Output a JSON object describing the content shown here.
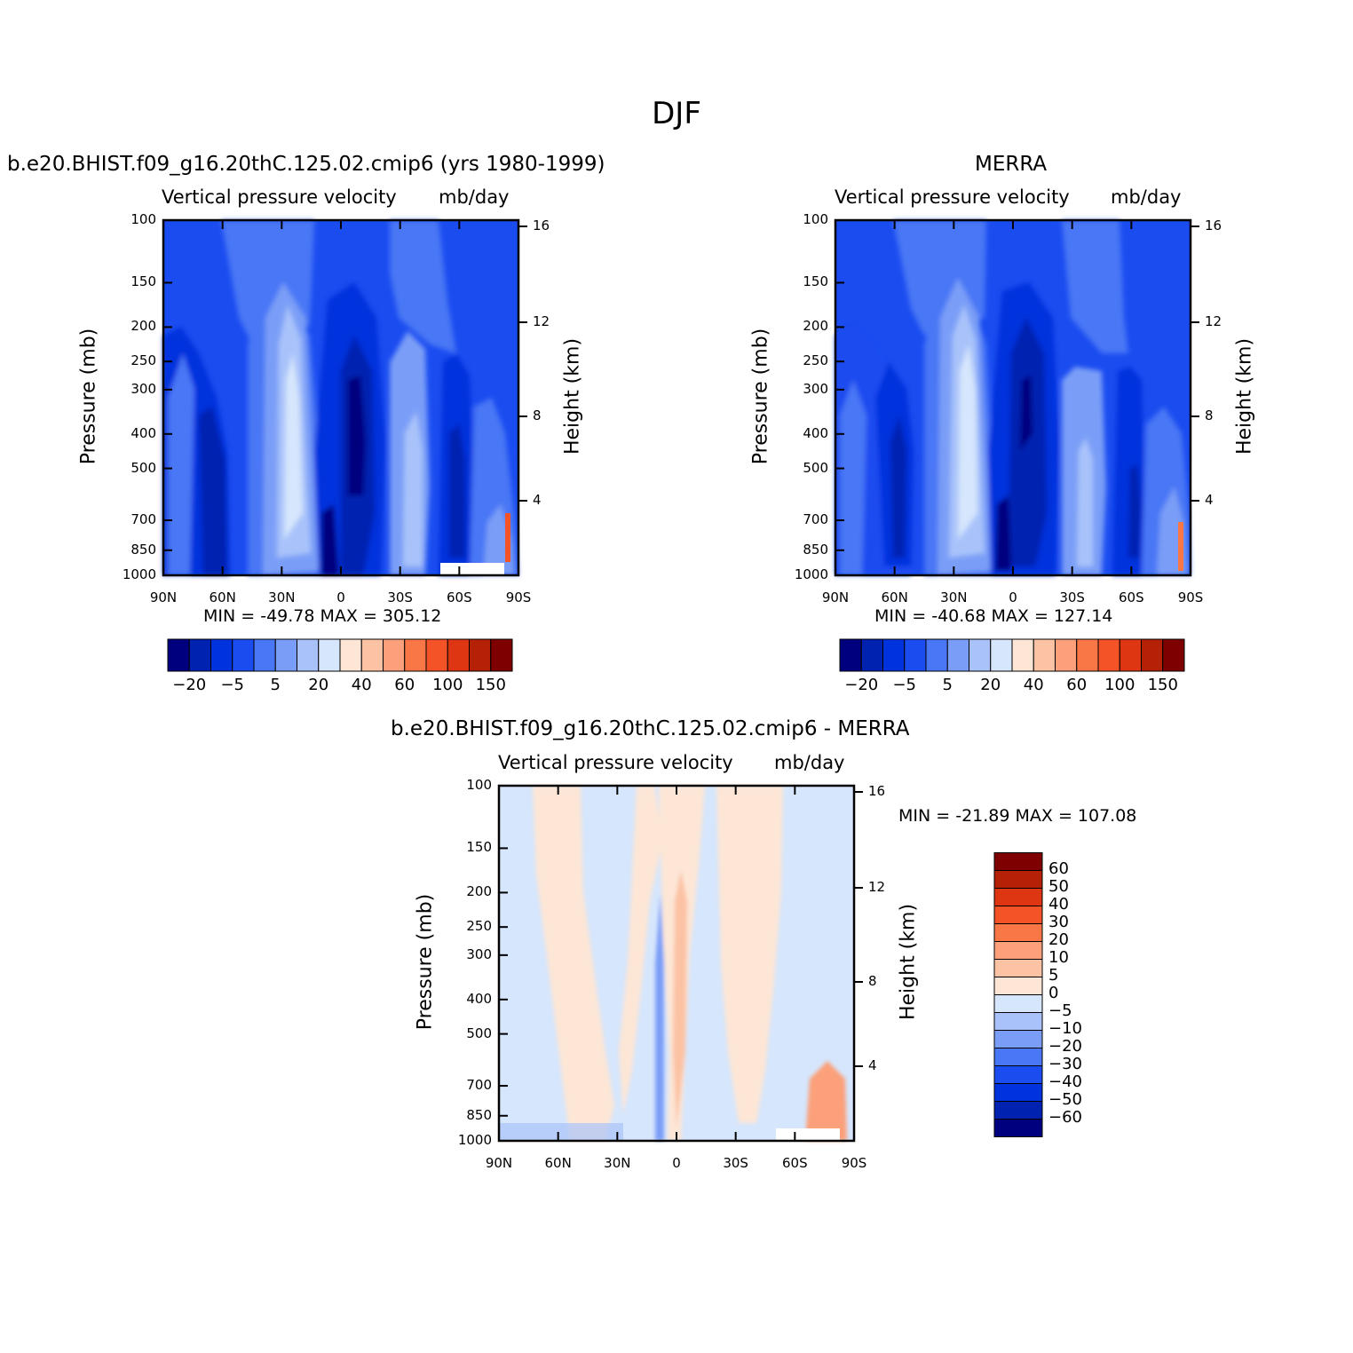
{
  "figure": {
    "title": "DJF"
  },
  "panels": {
    "model": {
      "title": "b.e20.BHIST.f09_g16.20thC.125.02.cmip6 (yrs 1980-1999)",
      "variable": "Vertical pressure velocity",
      "units": "mb/day",
      "minmax": "MIN = -49.78   MAX = 305.12"
    },
    "obs": {
      "title": "MERRA",
      "variable": "Vertical pressure velocity",
      "units": "mb/day",
      "minmax": "MIN = -40.68   MAX = 127.14"
    },
    "diff": {
      "title": "b.e20.BHIST.f09_g16.20thC.125.02.cmip6 - MERRA",
      "variable": "Vertical pressure velocity",
      "units": "mb/day",
      "minmax": "MIN = -21.89   MAX = 107.08"
    }
  },
  "axes": {
    "ylabel": "Pressure (mb)",
    "y2label": "Height (km)",
    "pressure_ticks": [
      "100",
      "150",
      "200",
      "250",
      "300",
      "400",
      "500",
      "700",
      "850",
      "1000"
    ],
    "height_ticks": [
      "16",
      "12",
      "8",
      "4"
    ],
    "lat_ticks": [
      "90N",
      "60N",
      "30N",
      "0",
      "30S",
      "60S",
      "90S"
    ]
  },
  "colorbars": {
    "main": {
      "colors": [
        "#00007F",
        "#0022B0",
        "#0033DD",
        "#1A4CF0",
        "#4A77F5",
        "#7A9EF7",
        "#A9C3FA",
        "#D6E6FC",
        "#FDE6D6",
        "#FCC2A4",
        "#FBA07A",
        "#F97646",
        "#F35326",
        "#DE3612",
        "#B42106",
        "#7E0000"
      ],
      "labels": [
        "-20",
        "-5",
        "5",
        "20",
        "40",
        "60",
        "100",
        "150"
      ]
    },
    "diff": {
      "colors": [
        "#7E0000",
        "#B42106",
        "#DE3612",
        "#F35326",
        "#F97646",
        "#FBA07A",
        "#FCC2A4",
        "#FDE6D6",
        "#D6E6FC",
        "#A9C3FA",
        "#7A9EF7",
        "#4A77F5",
        "#1A4CF0",
        "#0033DD",
        "#0022B0",
        "#00007F"
      ],
      "labels": [
        "60",
        "50",
        "40",
        "30",
        "20",
        "10",
        "5",
        "0",
        "-5",
        "-10",
        "-20",
        "-30",
        "-40",
        "-50",
        "-60"
      ]
    }
  },
  "chart_data": [
    {
      "type": "heatmap",
      "title": "b.e20.BHIST.f09_g16.20thC.125.02.cmip6 (yrs 1980-1999)",
      "subtitle": "Vertical pressure velocity mb/day",
      "xlabel": "",
      "ylabel": "Pressure (mb)",
      "y2label": "Height (km)",
      "x": [
        "90N",
        "60N",
        "30N",
        "0",
        "30S",
        "60S",
        "90S"
      ],
      "y": [
        100,
        150,
        200,
        250,
        300,
        400,
        500,
        700,
        850,
        1000
      ],
      "min": -49.78,
      "max": 305.12,
      "features": [
        {
          "lat_from": 90,
          "lat_to": 70,
          "value": -30
        },
        {
          "lat_from": 70,
          "lat_to": 40,
          "value": -20
        },
        {
          "lat_from": 30,
          "lat_to": 15,
          "value": 10
        },
        {
          "lat_from": 10,
          "lat_to": -10,
          "value": -40
        },
        {
          "lat_from": -20,
          "lat_to": -35,
          "value": 5
        },
        {
          "lat_from": -50,
          "lat_to": -65,
          "value": -30
        }
      ]
    },
    {
      "type": "heatmap",
      "title": "MERRA",
      "subtitle": "Vertical pressure velocity mb/day",
      "xlabel": "",
      "ylabel": "Pressure (mb)",
      "y2label": "Height (km)",
      "x": [
        "90N",
        "60N",
        "30N",
        "0",
        "30S",
        "60S",
        "90S"
      ],
      "y": [
        100,
        150,
        200,
        250,
        300,
        400,
        500,
        700,
        850,
        1000
      ],
      "min": -40.68,
      "max": 127.14,
      "features": [
        {
          "lat_from": 90,
          "lat_to": 70,
          "value": -30
        },
        {
          "lat_from": 70,
          "lat_to": 40,
          "value": -30
        },
        {
          "lat_from": 30,
          "lat_to": 15,
          "value": 10
        },
        {
          "lat_from": 10,
          "lat_to": -10,
          "value": -40
        },
        {
          "lat_from": -20,
          "lat_to": -35,
          "value": 5
        },
        {
          "lat_from": -50,
          "lat_to": -65,
          "value": -30
        }
      ]
    },
    {
      "type": "heatmap",
      "title": "b.e20.BHIST.f09_g16.20thC.125.02.cmip6 - MERRA",
      "subtitle": "Vertical pressure velocity mb/day",
      "xlabel": "",
      "ylabel": "Pressure (mb)",
      "y2label": "Height (km)",
      "x": [
        "90N",
        "60N",
        "30N",
        "0",
        "30S",
        "60S",
        "90S"
      ],
      "y": [
        100,
        150,
        200,
        250,
        300,
        400,
        500,
        700,
        850,
        1000
      ],
      "min": -21.89,
      "max": 107.08,
      "features": [
        {
          "lat_from": 90,
          "lat_to": 75,
          "value": -2
        },
        {
          "lat_from": 75,
          "lat_to": 50,
          "value": 2
        },
        {
          "lat_from": 50,
          "lat_to": 20,
          "value": -2
        },
        {
          "lat_from": 20,
          "lat_to": 5,
          "value": 2
        },
        {
          "lat_from": 5,
          "lat_to": -5,
          "value": 7
        },
        {
          "lat_from": -5,
          "lat_to": -20,
          "value": -2
        },
        {
          "lat_from": -20,
          "lat_to": -55,
          "value": 2
        },
        {
          "lat_from": -55,
          "lat_to": -90,
          "value": -2
        }
      ]
    }
  ]
}
